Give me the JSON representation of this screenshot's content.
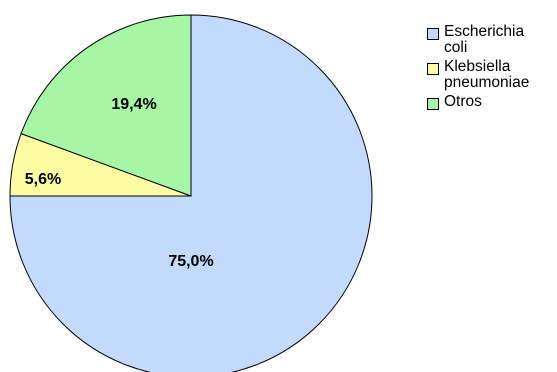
{
  "chart_data": {
    "type": "pie",
    "slices": [
      {
        "label": "Escherichia coli",
        "legend_lines": "Escherichia\ncoli",
        "value": 75.0,
        "value_label": "75,0%",
        "color": "#c3dafd"
      },
      {
        "label": "Klebsiella pneumoniae",
        "legend_lines": "Klebsiella\npneumoniae",
        "value": 5.6,
        "value_label": "5,6%",
        "color": "#fdfca3"
      },
      {
        "label": "Otros",
        "legend_lines": "Otros",
        "value": 19.4,
        "value_label": "19,4%",
        "color": "#a6f6a6"
      }
    ],
    "start_direction": "12 o'clock",
    "direction": "clockwise",
    "legend_placement": "right"
  }
}
